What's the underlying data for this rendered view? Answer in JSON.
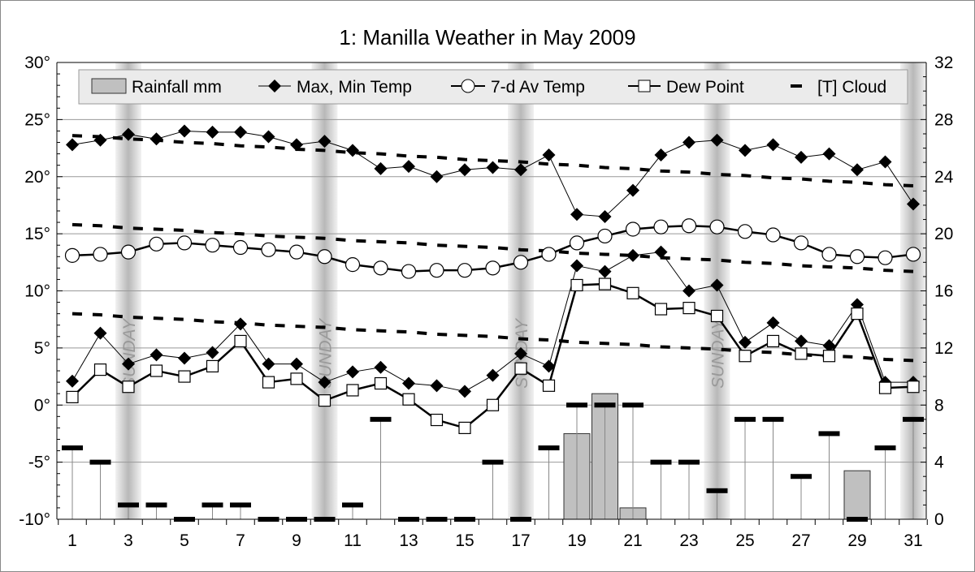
{
  "chart_data": {
    "type": "line",
    "title": "1: Manilla Weather in May 2009",
    "x": [
      1,
      2,
      3,
      4,
      5,
      6,
      7,
      8,
      9,
      10,
      11,
      12,
      13,
      14,
      15,
      16,
      17,
      18,
      19,
      20,
      21,
      22,
      23,
      24,
      25,
      26,
      27,
      28,
      29,
      30,
      31
    ],
    "x_tick_labels": [
      "1",
      "3",
      "5",
      "7",
      "9",
      "11",
      "13",
      "15",
      "17",
      "19",
      "21",
      "23",
      "25",
      "27",
      "29",
      "31"
    ],
    "left_axis": {
      "range": [
        -10,
        30
      ],
      "tick_labels": [
        "-10°",
        "-5°",
        "0°",
        "5°",
        "10°",
        "15°",
        "20°",
        "25°",
        "30°"
      ]
    },
    "right_axis": {
      "range": [
        0,
        32
      ],
      "tick_labels": [
        "0",
        "4",
        "8",
        "12",
        "16",
        "20",
        "24",
        "28",
        "32"
      ]
    },
    "grid": true,
    "legend_placement": "top",
    "sunday_label": "SUNDAY",
    "sundays": [
      3,
      10,
      17,
      24,
      31
    ],
    "series": [
      {
        "name": "Rainfall mm",
        "type": "bar",
        "axis": "right",
        "values": [
          0,
          0,
          0,
          0,
          0,
          0,
          0,
          0,
          0,
          0,
          0,
          0,
          0,
          0,
          0,
          0,
          0,
          0,
          6.0,
          8.8,
          0.8,
          0,
          0,
          0,
          0,
          0,
          0,
          0,
          3.4,
          0,
          0
        ]
      },
      {
        "name": "Max, Min Temp",
        "type": "line",
        "marker": "diamond",
        "axis": "left",
        "max": [
          22.8,
          23.2,
          23.7,
          23.3,
          24.0,
          23.9,
          23.9,
          23.5,
          22.8,
          23.1,
          22.3,
          20.7,
          20.9,
          20.0,
          20.6,
          20.8,
          20.6,
          21.9,
          16.7,
          16.5,
          18.8,
          21.9,
          23.0,
          23.2,
          22.3,
          22.8,
          21.7,
          22.0,
          20.6,
          21.3,
          17.6
        ],
        "min": [
          2.1,
          6.3,
          3.6,
          4.4,
          4.1,
          4.6,
          7.1,
          3.6,
          3.6,
          2.0,
          2.9,
          3.3,
          1.9,
          1.7,
          1.2,
          2.6,
          4.5,
          3.4,
          12.2,
          11.7,
          13.1,
          13.4,
          10.0,
          10.5,
          5.5,
          7.2,
          5.6,
          5.2,
          8.8,
          2.0,
          2.0
        ]
      },
      {
        "name": "7-d Av Temp",
        "type": "line",
        "marker": "circle",
        "axis": "left",
        "values": [
          13.1,
          13.2,
          13.4,
          14.1,
          14.2,
          14.0,
          13.8,
          13.6,
          13.4,
          13.0,
          12.3,
          12.0,
          11.7,
          11.8,
          11.8,
          12.0,
          12.5,
          13.2,
          14.2,
          14.8,
          15.4,
          15.6,
          15.7,
          15.6,
          15.2,
          14.9,
          14.2,
          13.2,
          13.0,
          12.9,
          13.2
        ]
      },
      {
        "name": "Dew Point",
        "type": "line",
        "marker": "square",
        "axis": "left",
        "values": [
          0.7,
          3.1,
          1.6,
          3.0,
          2.5,
          3.4,
          5.6,
          2.0,
          2.3,
          0.4,
          1.3,
          1.9,
          0.5,
          -1.3,
          -2.0,
          0.0,
          3.2,
          1.7,
          10.5,
          10.6,
          9.8,
          8.4,
          8.5,
          7.8,
          4.3,
          5.6,
          4.5,
          4.3,
          8.0,
          1.5,
          1.6
        ]
      },
      {
        "name": "[T] Cloud",
        "type": "dash",
        "axis": "right",
        "values": [
          5,
          4,
          1,
          1,
          0,
          1,
          1,
          0,
          0,
          0,
          1,
          7,
          0,
          0,
          0,
          4,
          0,
          5,
          8,
          8,
          8,
          4,
          4,
          2,
          7,
          7,
          3,
          6,
          0,
          5,
          7
        ]
      },
      {
        "type": "dashed-line",
        "axis": "left",
        "values": [
          23.6,
          23.5,
          23.3,
          23.2,
          23.0,
          22.9,
          22.7,
          22.6,
          22.4,
          22.3,
          22.1,
          22.0,
          21.8,
          21.7,
          21.5,
          21.4,
          21.3,
          21.1,
          21.0,
          20.8,
          20.7,
          20.5,
          20.4,
          20.2,
          20.1,
          19.9,
          19.8,
          19.6,
          19.5,
          19.3,
          19.2
        ]
      },
      {
        "type": "dashed-line",
        "axis": "left",
        "values": [
          15.8,
          15.7,
          15.5,
          15.4,
          15.3,
          15.1,
          15.0,
          14.8,
          14.7,
          14.6,
          14.4,
          14.3,
          14.2,
          14.0,
          13.9,
          13.8,
          13.6,
          13.5,
          13.3,
          13.2,
          13.1,
          12.9,
          12.8,
          12.7,
          12.5,
          12.4,
          12.2,
          12.1,
          12.0,
          11.8,
          11.7
        ]
      },
      {
        "type": "dashed-line",
        "axis": "left",
        "values": [
          8.0,
          7.9,
          7.7,
          7.6,
          7.5,
          7.3,
          7.2,
          7.0,
          6.9,
          6.8,
          6.6,
          6.5,
          6.4,
          6.2,
          6.1,
          6.0,
          5.8,
          5.7,
          5.5,
          5.4,
          5.3,
          5.1,
          5.0,
          4.9,
          4.7,
          4.6,
          4.4,
          4.3,
          4.2,
          4.0,
          3.9
        ]
      }
    ],
    "colors": {
      "bar_fill": "#c0c0c0",
      "sunday_band": "#c8c8c8",
      "legend_bg": "#ebebeb",
      "grid": "#999999"
    }
  }
}
